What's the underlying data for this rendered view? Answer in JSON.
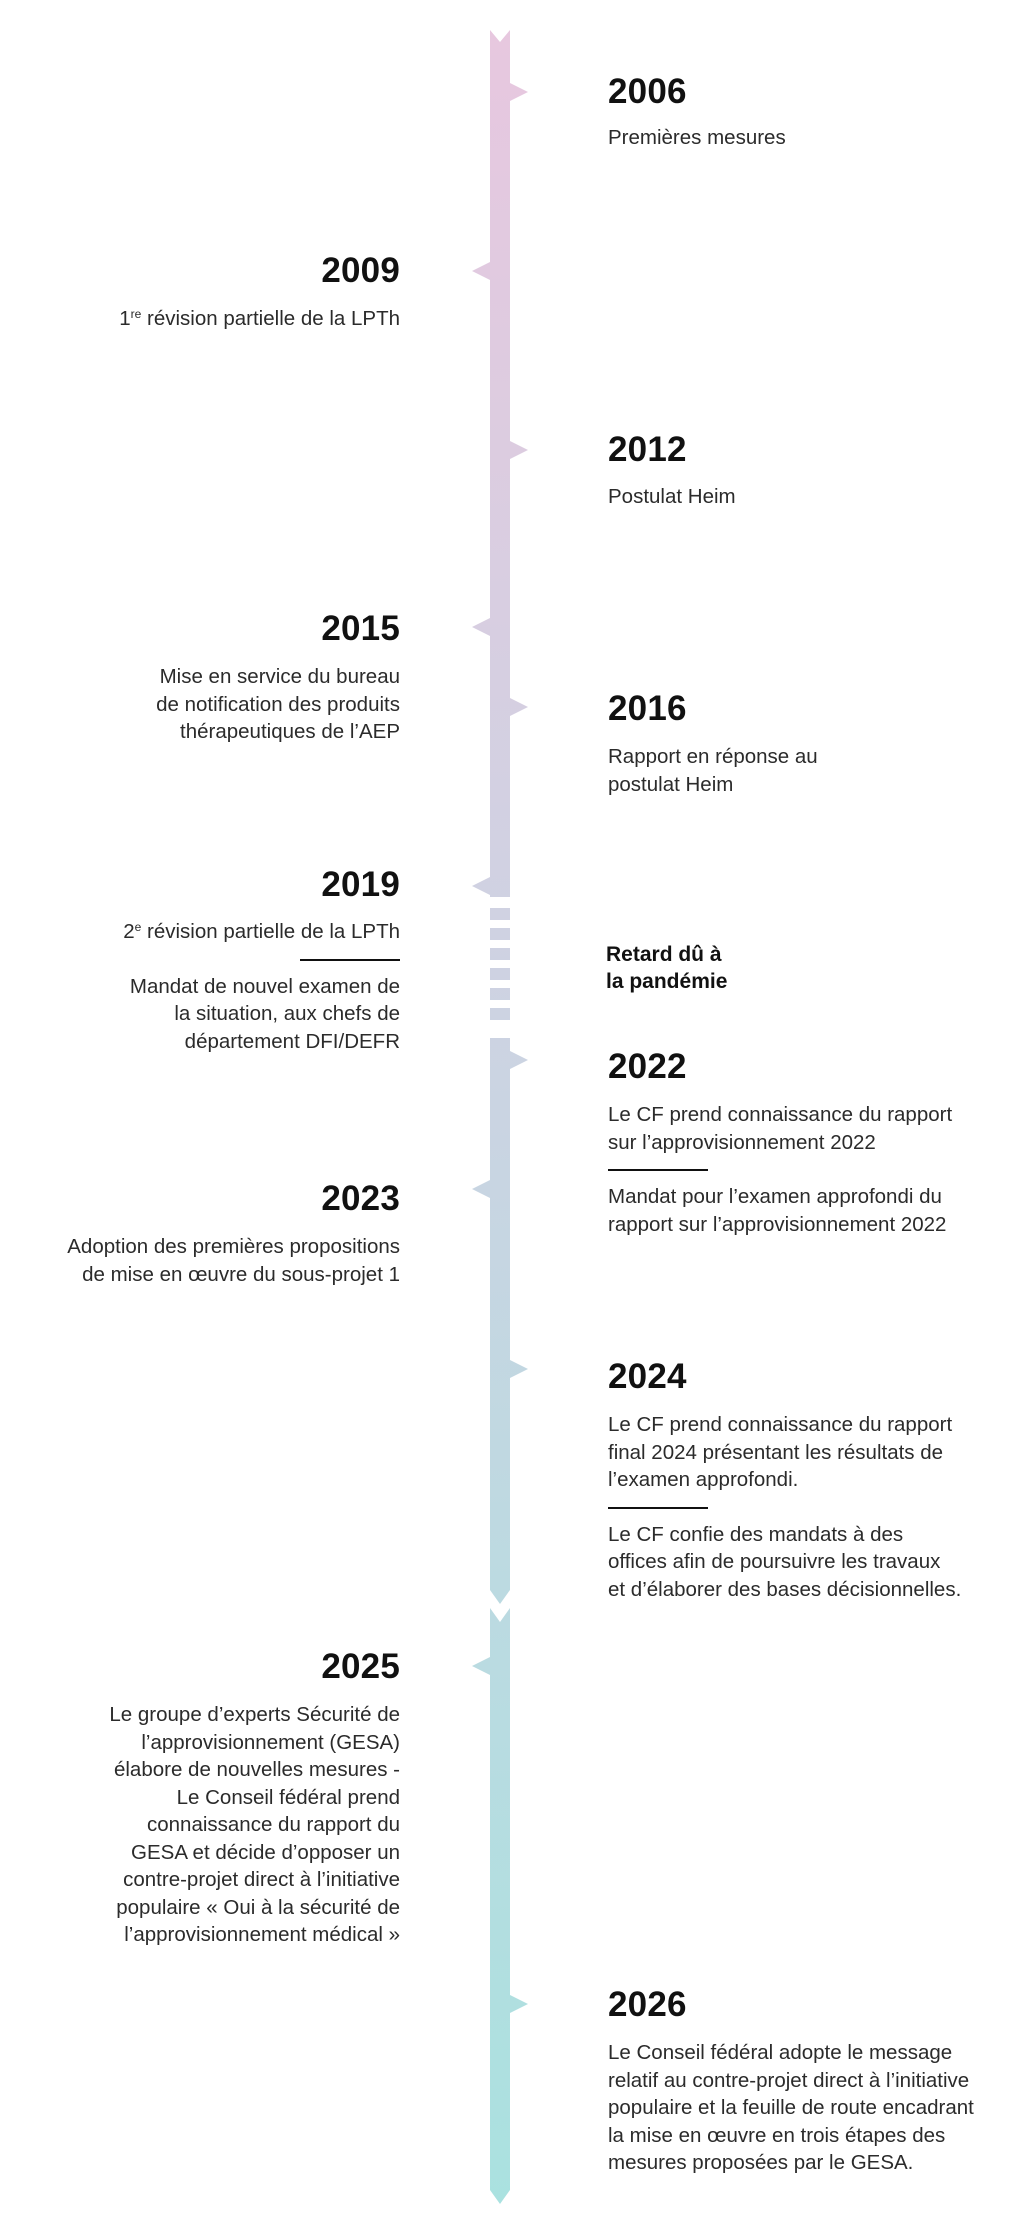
{
  "colors": {
    "top": "#e8c7df",
    "middle": "#cfd2e2",
    "bottom": "#a9e2e0",
    "text": "#222222"
  },
  "events": [
    {
      "year": "2006",
      "desc": [
        "Premières mesures"
      ]
    },
    {
      "year": "2009",
      "desc_pre": "1",
      "desc_sup": "re",
      "desc_post": " révision partielle de la LPTh"
    },
    {
      "year": "2012",
      "desc": [
        "Postulat Heim"
      ]
    },
    {
      "year": "2015",
      "desc": [
        "Mise en service du bureau",
        "de notification des produits",
        "thérapeutiques de l’AEP"
      ]
    },
    {
      "year": "2016",
      "desc": [
        "Rapport en réponse au",
        "postulat Heim"
      ]
    },
    {
      "year": "2019",
      "desc_pre": "2",
      "desc_sup": "e",
      "desc_post": " révision partielle de la LPTh",
      "desc2": [
        "Mandat de nouvel examen de",
        "la situation, aux chefs de",
        "département DFI/DEFR"
      ]
    },
    {
      "year": "2022",
      "desc": [
        "Le CF prend connaissance du rapport",
        "sur l’approvisionnement 2022"
      ],
      "desc2": [
        "Mandat pour l’examen approfondi du",
        "rapport sur l’approvisionnement 2022"
      ]
    },
    {
      "year": "2023",
      "desc": [
        "Adoption des premières propositions",
        "de mise en œuvre du sous-projet 1"
      ]
    },
    {
      "year": "2024",
      "desc": [
        "Le CF prend connaissance du rapport",
        "final 2024 présentant les résultats de",
        "l’examen approfondi."
      ],
      "desc2": [
        "Le CF confie des mandats à des",
        "offices afin de poursuivre les travaux",
        "et d’élaborer des bases décisionnelles."
      ]
    },
    {
      "year": "2025",
      "desc": [
        "Le groupe d’experts Sécurité de",
        "l’approvisionnement (GESA)",
        "élabore de nouvelles mesures -",
        "Le Conseil fédéral prend",
        "connaissance du rapport du",
        "GESA et décide d’opposer un",
        "contre-projet direct à l’initiative",
        "populaire « Oui à la sécurité de",
        "l’approvisionnement médical »"
      ]
    },
    {
      "year": "2026",
      "desc": [
        "Le Conseil fédéral adopte le message",
        "relatif au contre-projet direct à l’initiative",
        "populaire et la feuille de route encadrant",
        "la mise en œuvre en trois étapes des",
        "mesures proposées par le GESA."
      ]
    }
  ],
  "pandemic_note": [
    "Retard dû à",
    "la pandémie"
  ]
}
